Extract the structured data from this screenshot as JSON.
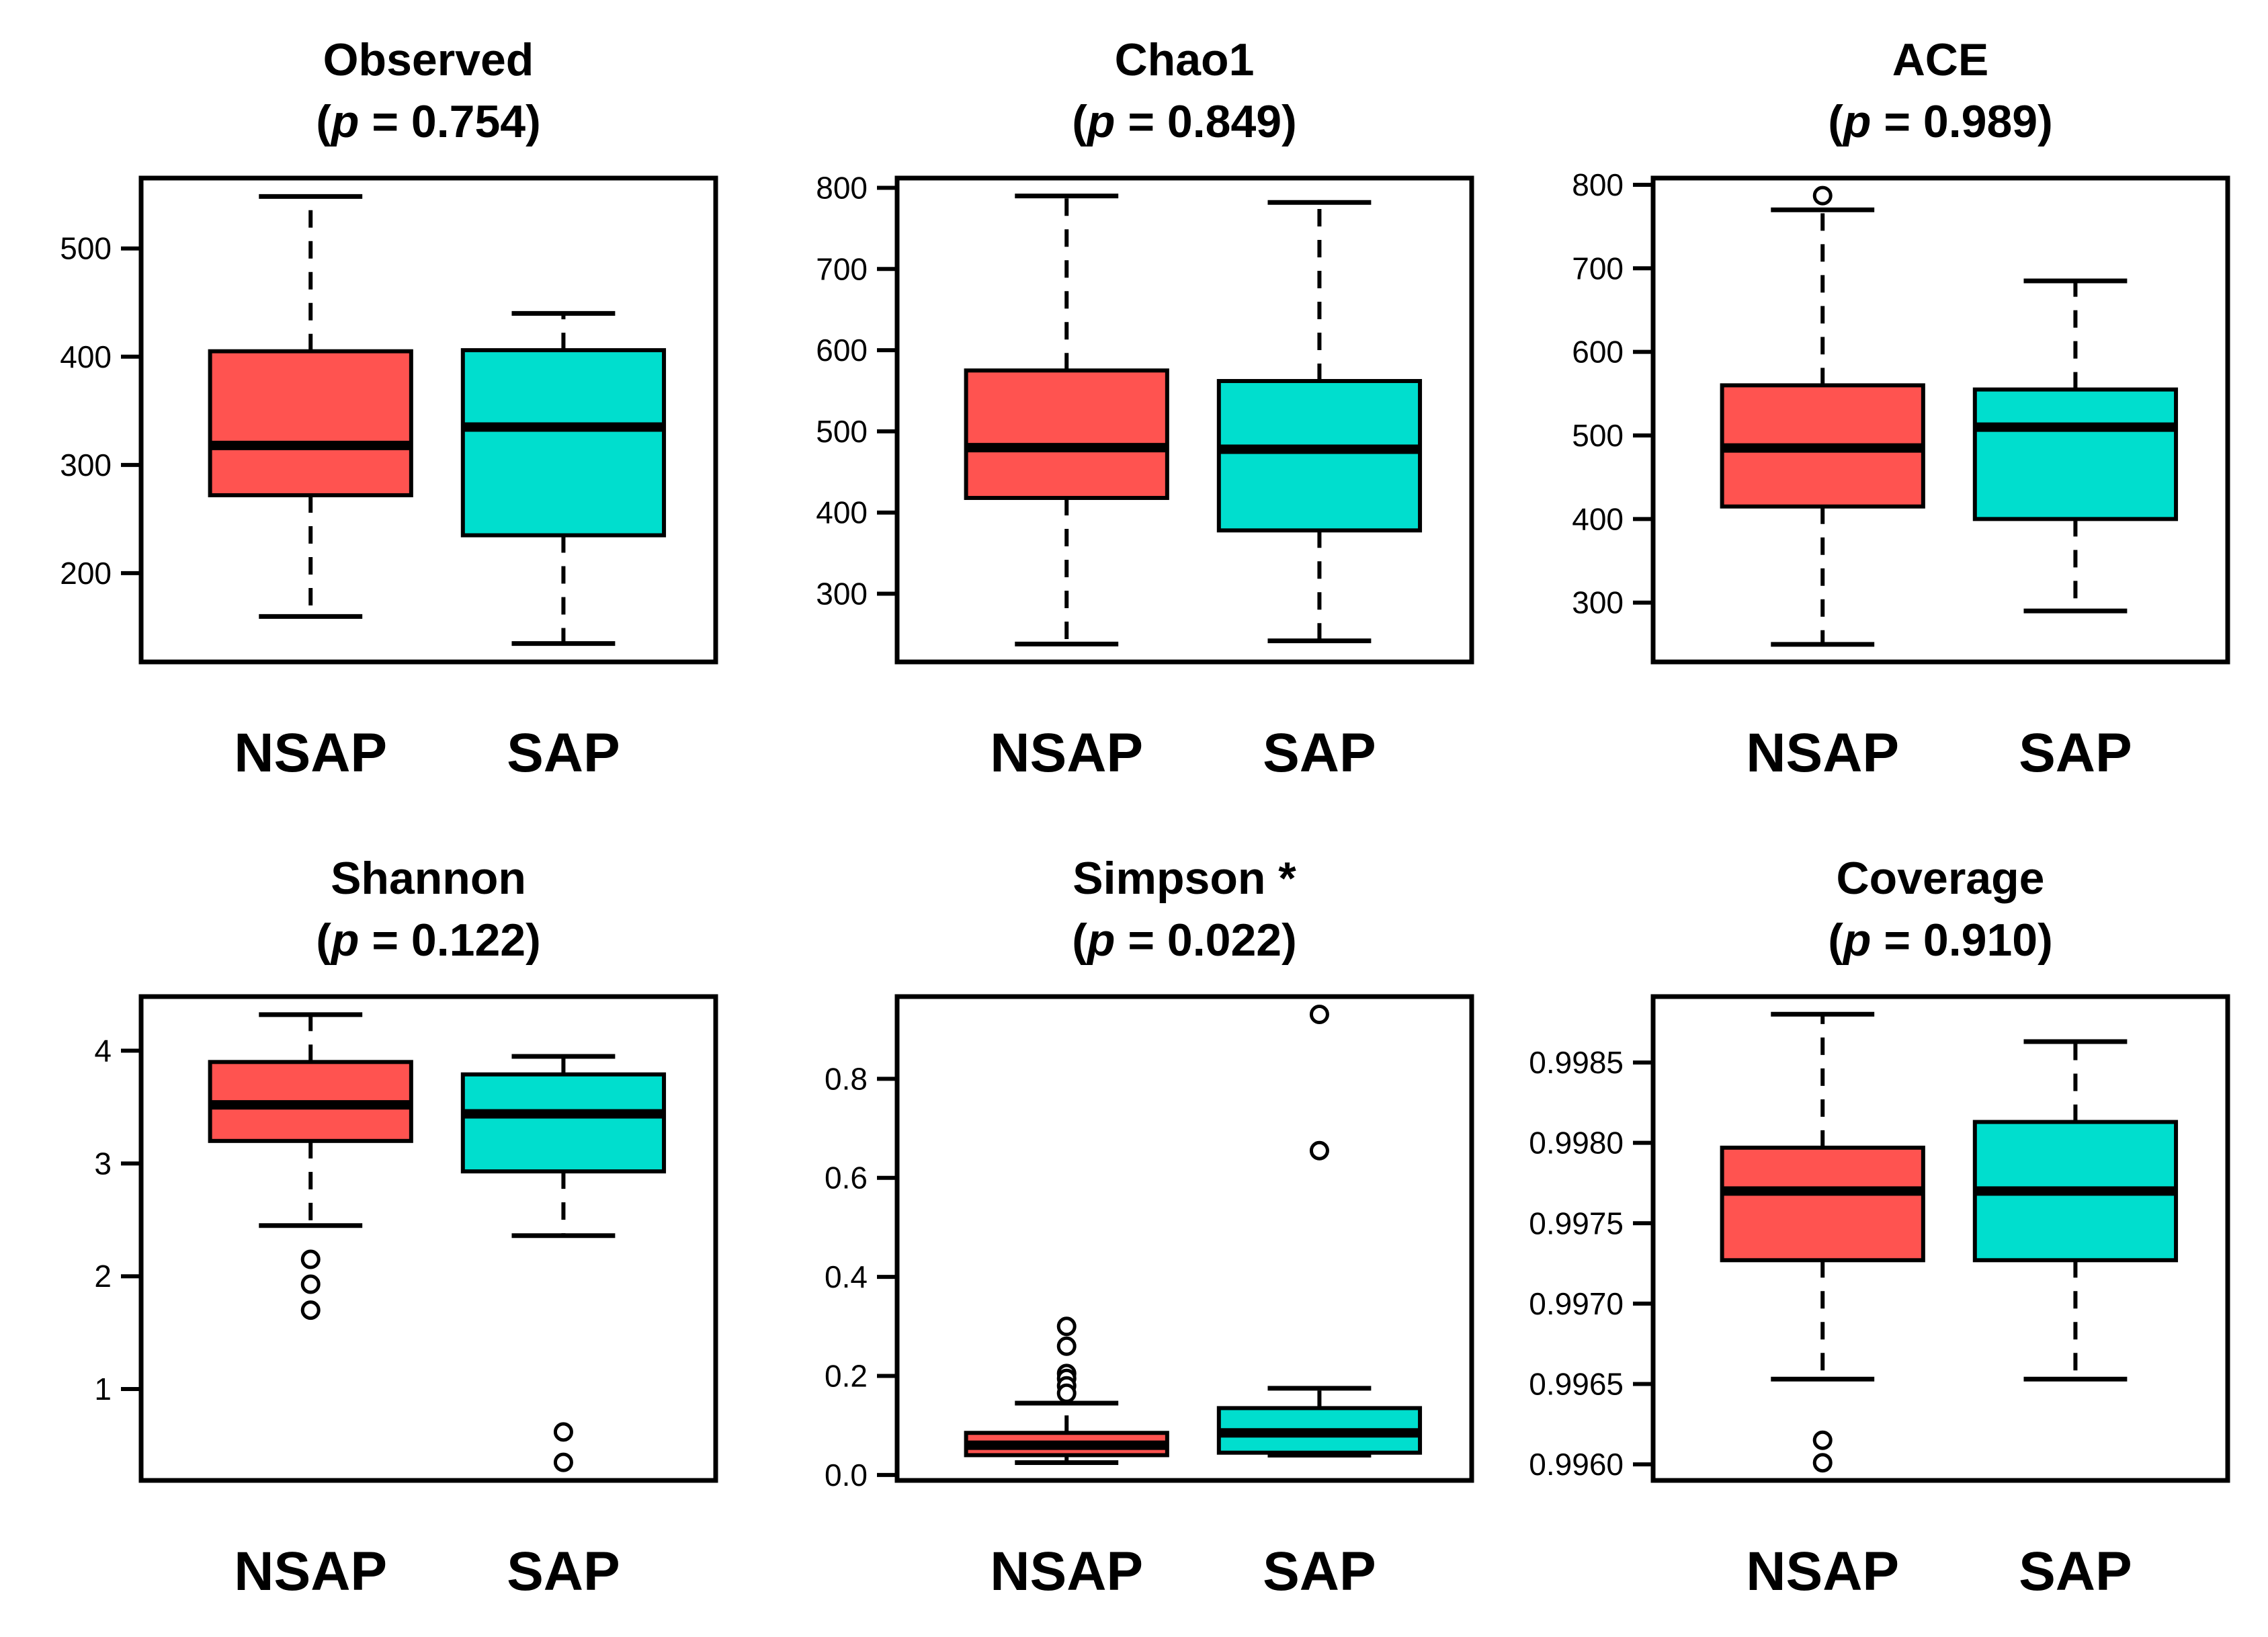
{
  "figure": {
    "kind": "boxplot-grid",
    "rows": 2,
    "cols": 3,
    "background": "#FFFFFF",
    "group_colors": {
      "NSAP": "#FF5350",
      "SAP": "#00DECE"
    },
    "outline_color": "#000000",
    "outlier_fill": "#FFFFFF"
  },
  "chart_data": [
    {
      "type": "box",
      "title": "Observed",
      "p_text": "p = 0.754",
      "ylim": [
        118,
        565
      ],
      "categories": [
        "NSAP",
        "SAP"
      ],
      "yticks": [
        {
          "v": 200,
          "t": "200"
        },
        {
          "v": 300,
          "t": "300"
        },
        {
          "v": 400,
          "t": "400"
        },
        {
          "v": 500,
          "t": "500"
        }
      ],
      "groups": [
        {
          "label": "NSAP",
          "color": "#FF5350",
          "low": 160,
          "q1": 272,
          "median": 318,
          "q3": 405,
          "high": 548,
          "outliers": []
        },
        {
          "label": "SAP",
          "color": "#00DECE",
          "low": 135,
          "q1": 235,
          "median": 335,
          "q3": 406,
          "high": 440,
          "outliers": []
        }
      ]
    },
    {
      "type": "box",
      "title": "Chao1",
      "p_text": "p = 0.849",
      "ylim": [
        216,
        812
      ],
      "categories": [
        "NSAP",
        "SAP"
      ],
      "yticks": [
        {
          "v": 300,
          "t": "300"
        },
        {
          "v": 400,
          "t": "400"
        },
        {
          "v": 500,
          "t": "500"
        },
        {
          "v": 600,
          "t": "600"
        },
        {
          "v": 700,
          "t": "700"
        },
        {
          "v": 800,
          "t": "800"
        }
      ],
      "groups": [
        {
          "label": "NSAP",
          "color": "#FF5350",
          "low": 238,
          "q1": 418,
          "median": 480,
          "q3": 575,
          "high": 790,
          "outliers": []
        },
        {
          "label": "SAP",
          "color": "#00DECE",
          "low": 242,
          "q1": 378,
          "median": 478,
          "q3": 562,
          "high": 782,
          "outliers": []
        }
      ]
    },
    {
      "type": "box",
      "title": "ACE",
      "p_text": "p = 0.989",
      "ylim": [
        229,
        808
      ],
      "categories": [
        "NSAP",
        "SAP"
      ],
      "yticks": [
        {
          "v": 300,
          "t": "300"
        },
        {
          "v": 400,
          "t": "400"
        },
        {
          "v": 500,
          "t": "500"
        },
        {
          "v": 600,
          "t": "600"
        },
        {
          "v": 700,
          "t": "700"
        },
        {
          "v": 800,
          "t": "800"
        }
      ],
      "groups": [
        {
          "label": "NSAP",
          "color": "#FF5350",
          "low": 250,
          "q1": 415,
          "median": 485,
          "q3": 560,
          "high": 770,
          "outliers": [
            787
          ]
        },
        {
          "label": "SAP",
          "color": "#00DECE",
          "low": 290,
          "q1": 400,
          "median": 510,
          "q3": 555,
          "high": 685,
          "outliers": []
        }
      ]
    },
    {
      "type": "box",
      "title": "Shannon",
      "p_text": "p = 0.122",
      "ylim": [
        0.19,
        4.48
      ],
      "categories": [
        "NSAP",
        "SAP"
      ],
      "yticks": [
        {
          "v": 1,
          "t": "1"
        },
        {
          "v": 2,
          "t": "2"
        },
        {
          "v": 3,
          "t": "3"
        },
        {
          "v": 4,
          "t": "4"
        }
      ],
      "groups": [
        {
          "label": "NSAP",
          "color": "#FF5350",
          "low": 2.45,
          "q1": 3.2,
          "median": 3.52,
          "q3": 3.9,
          "high": 4.32,
          "outliers": [
            2.15,
            1.93,
            1.7
          ]
        },
        {
          "label": "SAP",
          "color": "#00DECE",
          "low": 2.36,
          "q1": 2.93,
          "median": 3.44,
          "q3": 3.79,
          "high": 3.95,
          "outliers": [
            0.62,
            0.35
          ]
        }
      ]
    },
    {
      "type": "box",
      "title": "Simpson *",
      "p_text": "p = 0.022",
      "ylim": [
        -0.011,
        0.966
      ],
      "categories": [
        "NSAP",
        "SAP"
      ],
      "yticks": [
        {
          "v": 0.0,
          "t": "0.0"
        },
        {
          "v": 0.2,
          "t": "0.2"
        },
        {
          "v": 0.4,
          "t": "0.4"
        },
        {
          "v": 0.6,
          "t": "0.6"
        },
        {
          "v": 0.8,
          "t": "0.8"
        }
      ],
      "groups": [
        {
          "label": "NSAP",
          "color": "#FF5350",
          "low": 0.025,
          "q1": 0.04,
          "median": 0.06,
          "q3": 0.085,
          "high": 0.145,
          "outliers": [
            0.3,
            0.26,
            0.205,
            0.195,
            0.18,
            0.165
          ]
        },
        {
          "label": "SAP",
          "color": "#00DECE",
          "low": 0.04,
          "q1": 0.045,
          "median": 0.085,
          "q3": 0.135,
          "high": 0.175,
          "outliers": [
            0.93,
            0.655
          ]
        }
      ]
    },
    {
      "type": "box",
      "title": "Coverage",
      "p_text": "p = 0.910",
      "ylim": [
        0.9959,
        0.99891
      ],
      "categories": [
        "NSAP",
        "SAP"
      ],
      "yticks": [
        {
          "v": 0.996,
          "t": "0.9960"
        },
        {
          "v": 0.9965,
          "t": "0.9965"
        },
        {
          "v": 0.997,
          "t": "0.9970"
        },
        {
          "v": 0.9975,
          "t": "0.9975"
        },
        {
          "v": 0.998,
          "t": "0.9980"
        },
        {
          "v": 0.9985,
          "t": "0.9985"
        }
      ],
      "groups": [
        {
          "label": "NSAP",
          "color": "#FF5350",
          "low": 0.99653,
          "q1": 0.99727,
          "median": 0.9977,
          "q3": 0.99797,
          "high": 0.9988,
          "outliers": [
            0.99615,
            0.99601
          ]
        },
        {
          "label": "SAP",
          "color": "#00DECE",
          "low": 0.99653,
          "q1": 0.99727,
          "median": 0.9977,
          "q3": 0.99813,
          "high": 0.99863,
          "outliers": []
        }
      ]
    }
  ]
}
